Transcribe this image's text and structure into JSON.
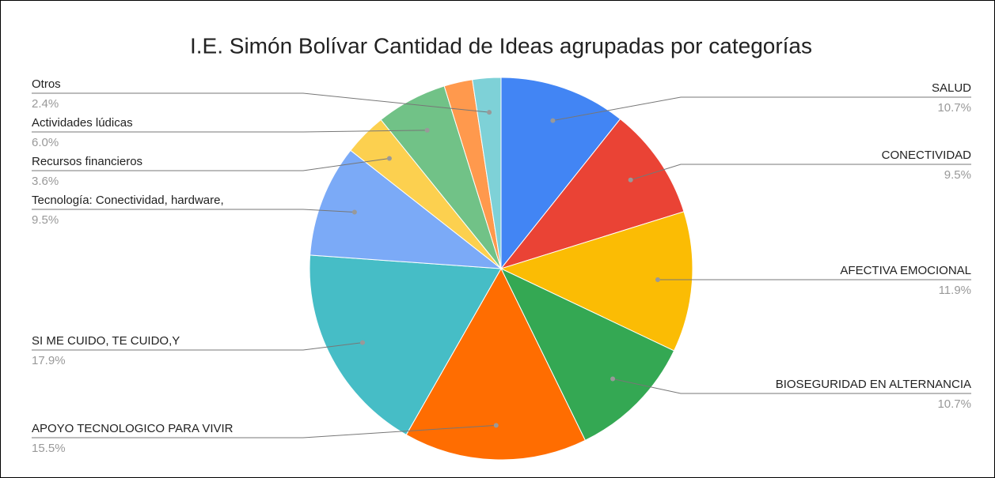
{
  "chart_data": {
    "type": "pie",
    "title": "I.E. Simón Bolívar Cantidad de Ideas agrupadas por categorías",
    "categories": [
      "SALUD",
      "CONECTIVIDAD",
      "AFECTIVA EMOCIONAL",
      "BIOSEGURIDAD EN ALTERNANCIA",
      "APOYO TECNOLOGICO PARA VIVIR",
      "SI ME CUIDO, TE CUIDO,Y",
      "Tecnología: Conectividad, hardware,",
      "Recursos financieros",
      "Actividades lúdicas",
      null,
      "Otros"
    ],
    "values": [
      10.7,
      9.5,
      11.9,
      10.7,
      15.5,
      17.9,
      9.5,
      3.6,
      6.0,
      2.4,
      2.4
    ],
    "value_labels": [
      "10.7%",
      "9.5%",
      "11.9%",
      "10.7%",
      "15.5%",
      "17.9%",
      "9.5%",
      "3.6%",
      "6.0%",
      null,
      "2.4%"
    ],
    "colors": [
      "#4285f4",
      "#ea4335",
      "#fbbc04",
      "#34a853",
      "#ff6d01",
      "#46bdc6",
      "#7baaf7",
      "#fcd04f",
      "#71c287",
      "#ff994d",
      "#7ed1d7"
    ]
  }
}
